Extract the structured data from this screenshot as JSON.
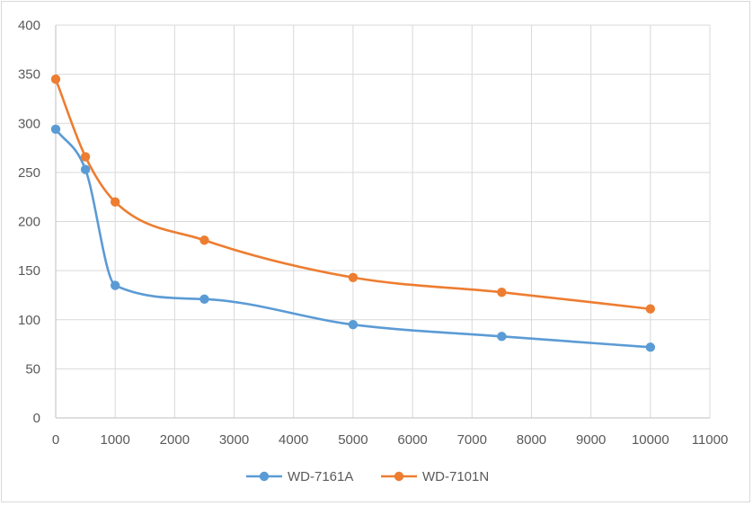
{
  "chart_data": {
    "type": "line",
    "smooth": true,
    "x": [
      0,
      500,
      1000,
      2500,
      5000,
      7500,
      10000
    ],
    "series": [
      {
        "name": "WD-7161A",
        "color": "#5b9bd5",
        "values": [
          294,
          253,
          135,
          121,
          95,
          83,
          72
        ]
      },
      {
        "name": "WD-7101N",
        "color": "#ed7d31",
        "values": [
          345,
          266,
          220,
          181,
          143,
          128,
          111
        ]
      }
    ],
    "xlim": [
      0,
      11000
    ],
    "ylim": [
      0,
      400
    ],
    "x_ticks": [
      0,
      1000,
      2000,
      3000,
      4000,
      5000,
      6000,
      7000,
      8000,
      9000,
      10000,
      11000
    ],
    "y_ticks": [
      0,
      50,
      100,
      150,
      200,
      250,
      300,
      350,
      400
    ],
    "grid": true,
    "legend_position": "bottom",
    "title": "",
    "xlabel": "",
    "ylabel": ""
  }
}
